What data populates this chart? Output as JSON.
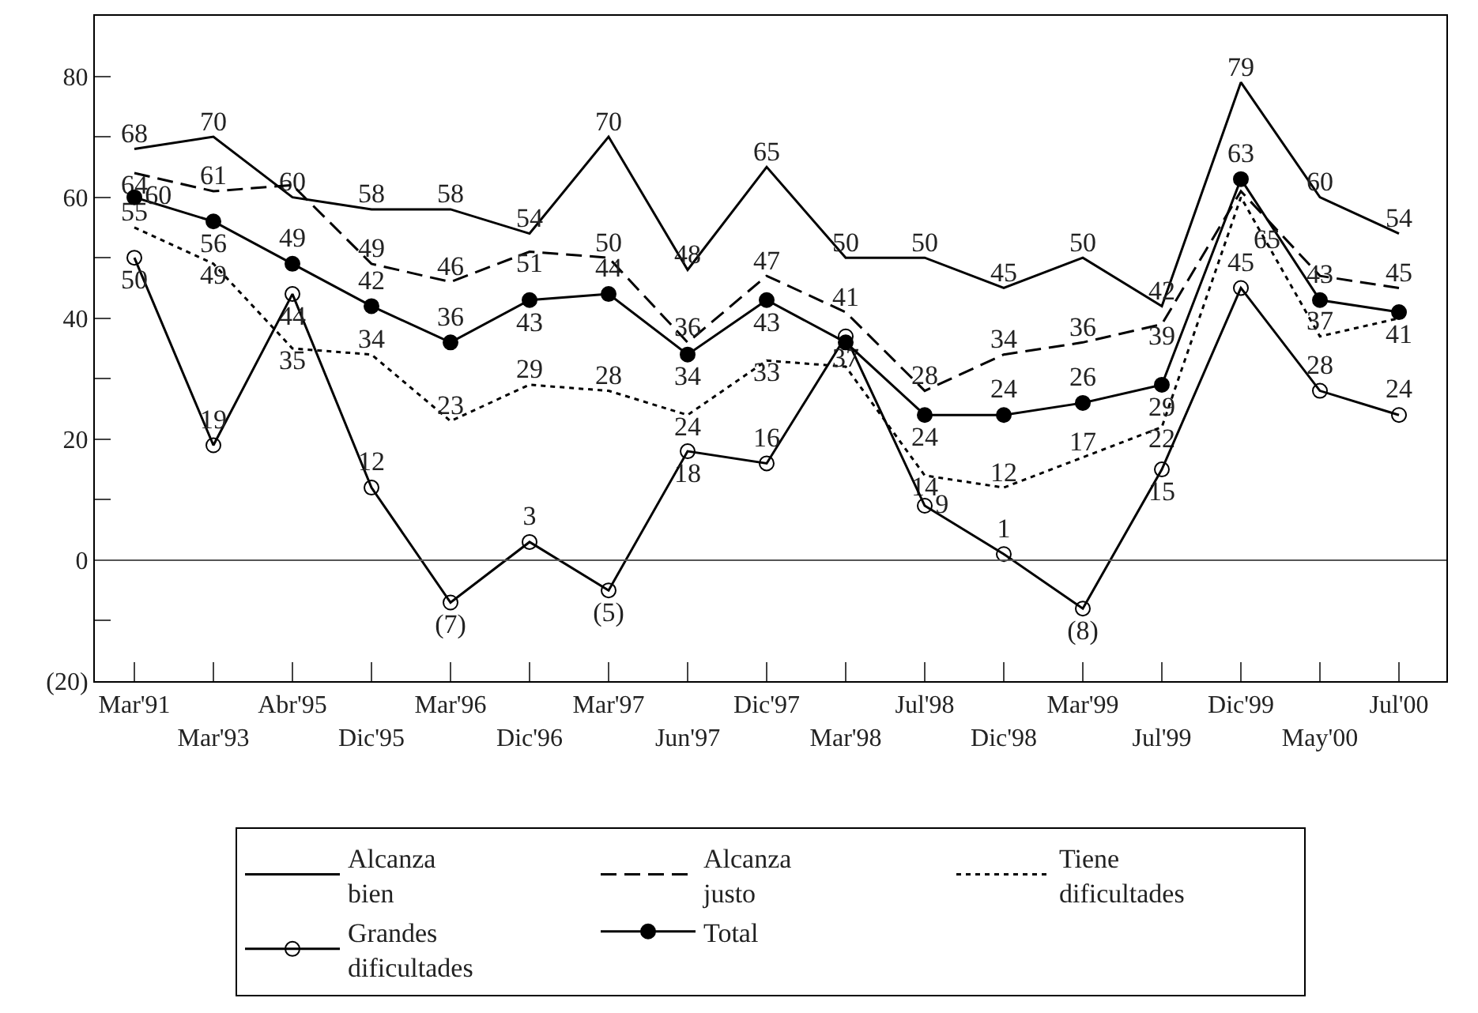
{
  "chart_data": {
    "type": "line",
    "categories": [
      "Mar'91",
      "Mar'93",
      "Abr'95",
      "Dic'95",
      "Mar'96",
      "Dic'96",
      "Mar'97",
      "Jun'97",
      "Dic'97",
      "Mar'98",
      "Jul'98",
      "Dic'98",
      "Mar'99",
      "Jul'99",
      "Dic'99",
      "May'00",
      "Jul'00"
    ],
    "series": [
      {
        "name": "Alcanza\nbien",
        "color": "#000000",
        "line_style": "solid",
        "marker": "none",
        "values": [
          68,
          70,
          60,
          58,
          58,
          54,
          70,
          48,
          65,
          50,
          50,
          45,
          50,
          42,
          79,
          60,
          54
        ],
        "value_labels": [
          "68",
          "70",
          "60",
          "58",
          "58",
          "54",
          "70",
          "48",
          "65",
          "50",
          "50",
          "45",
          "50",
          "42",
          "79",
          "60",
          "54"
        ]
      },
      {
        "name": "Alcanza\njusto",
        "color": "#000000",
        "line_style": "dashed",
        "marker": "none",
        "values": [
          64,
          61,
          62,
          49,
          46,
          51,
          50,
          36,
          47,
          41,
          28,
          34,
          36,
          39,
          61,
          47,
          45
        ],
        "value_labels": [
          "64",
          "61",
          null,
          "49",
          "46",
          "51",
          "50",
          "36",
          "47",
          "41",
          "28",
          "34",
          "36",
          "39",
          null,
          null,
          "45"
        ]
      },
      {
        "name": "Tiene\ndificultades",
        "color": "#000000",
        "line_style": "dotted",
        "marker": "none",
        "values": [
          55,
          49,
          35,
          34,
          23,
          29,
          28,
          24,
          33,
          32,
          14,
          12,
          17,
          22,
          60,
          37,
          40
        ],
        "value_labels": [
          "55",
          "49",
          "35",
          "34",
          "23",
          "29",
          "28",
          "24",
          "33",
          null,
          "14",
          "12",
          "17",
          "22",
          null,
          "37",
          null
        ]
      },
      {
        "name": "Grandes\ndificultades",
        "color": "#000000",
        "line_style": "solid",
        "marker": "circle-open",
        "values": [
          50,
          19,
          44,
          12,
          -7,
          3,
          -5,
          18,
          16,
          37,
          9,
          1,
          -8,
          15,
          45,
          28,
          24
        ],
        "value_labels": [
          "50",
          "19",
          "44",
          "12",
          "(7)",
          "3",
          "(5)",
          "18",
          "16",
          "37",
          "9",
          "1",
          "(8)",
          "15",
          "45",
          "28",
          "24"
        ]
      },
      {
        "name": "Total",
        "color": "#000000",
        "line_style": "solid",
        "marker": "circle",
        "values": [
          60,
          56,
          49,
          42,
          36,
          43,
          44,
          34,
          43,
          36,
          24,
          24,
          26,
          29,
          63,
          43,
          41
        ],
        "value_labels": [
          "60",
          "56",
          "49",
          "42",
          "36",
          "43",
          "44",
          "34",
          "43",
          null,
          "24",
          "24",
          "26",
          "29",
          "63",
          "43",
          "41"
        ]
      }
    ],
    "annotations": [
      "65"
    ],
    "ylim": [
      -20,
      90
    ],
    "yticks": [
      {
        "value": -20,
        "label": "(20)"
      },
      {
        "value": -10,
        "label": null
      },
      0,
      {
        "value": 10,
        "label": null
      },
      20,
      {
        "value": 30,
        "label": null
      },
      40,
      {
        "value": 50,
        "label": null
      },
      60,
      {
        "value": 70,
        "label": null
      },
      80
    ],
    "ref_lines": [
      {
        "axis": "y",
        "value": 0,
        "label": null
      }
    ],
    "legend": "bottom"
  }
}
